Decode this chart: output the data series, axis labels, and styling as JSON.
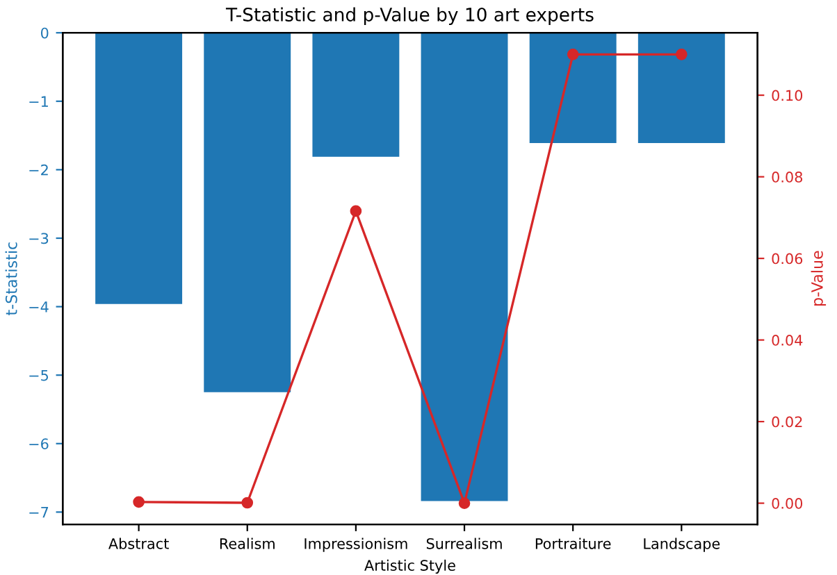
{
  "chart_data": {
    "type": "bar",
    "title": "T-Statistic and p-Value by 10 art experts",
    "xlabel": "Artistic Style",
    "ylabel": "t-Statistic",
    "y2label": "p-Value",
    "categories": [
      "Abstract",
      "Realism",
      "Impressionism",
      "Surrealism",
      "Portraiture",
      "Landscape"
    ],
    "series": [
      {
        "color": "#1f77b4",
        "values": [
          -3.96,
          -5.25,
          -1.81,
          -6.84,
          -1.61,
          -1.61
        ]
      },
      {
        "type": "line",
        "axis": "y2",
        "color": "#d62728",
        "marker": "circle",
        "values": [
          0.0003,
          0.0001,
          0.0716,
          0.0,
          0.11,
          0.11
        ]
      }
    ],
    "ylim": [
      -7.18,
      0
    ],
    "yticks": [
      {
        "value": 0,
        "label": "0"
      },
      {
        "value": -1,
        "label": "−1"
      },
      {
        "value": -2,
        "label": "−2"
      },
      {
        "value": -3,
        "label": "−3"
      },
      {
        "value": -4,
        "label": "−4"
      },
      {
        "value": -5,
        "label": "−5"
      },
      {
        "value": -6,
        "label": "−6"
      },
      {
        "value": -7,
        "label": "−7"
      }
    ],
    "y2lim": [
      -0.0052,
      0.1153
    ],
    "y2ticks": [
      {
        "value": 0.0,
        "label": "0.00"
      },
      {
        "value": 0.02,
        "label": "0.02"
      },
      {
        "value": 0.04,
        "label": "0.04"
      },
      {
        "value": 0.06,
        "label": "0.06"
      },
      {
        "value": 0.08,
        "label": "0.08"
      },
      {
        "value": 0.1,
        "label": "0.10"
      }
    ],
    "grid": false
  }
}
